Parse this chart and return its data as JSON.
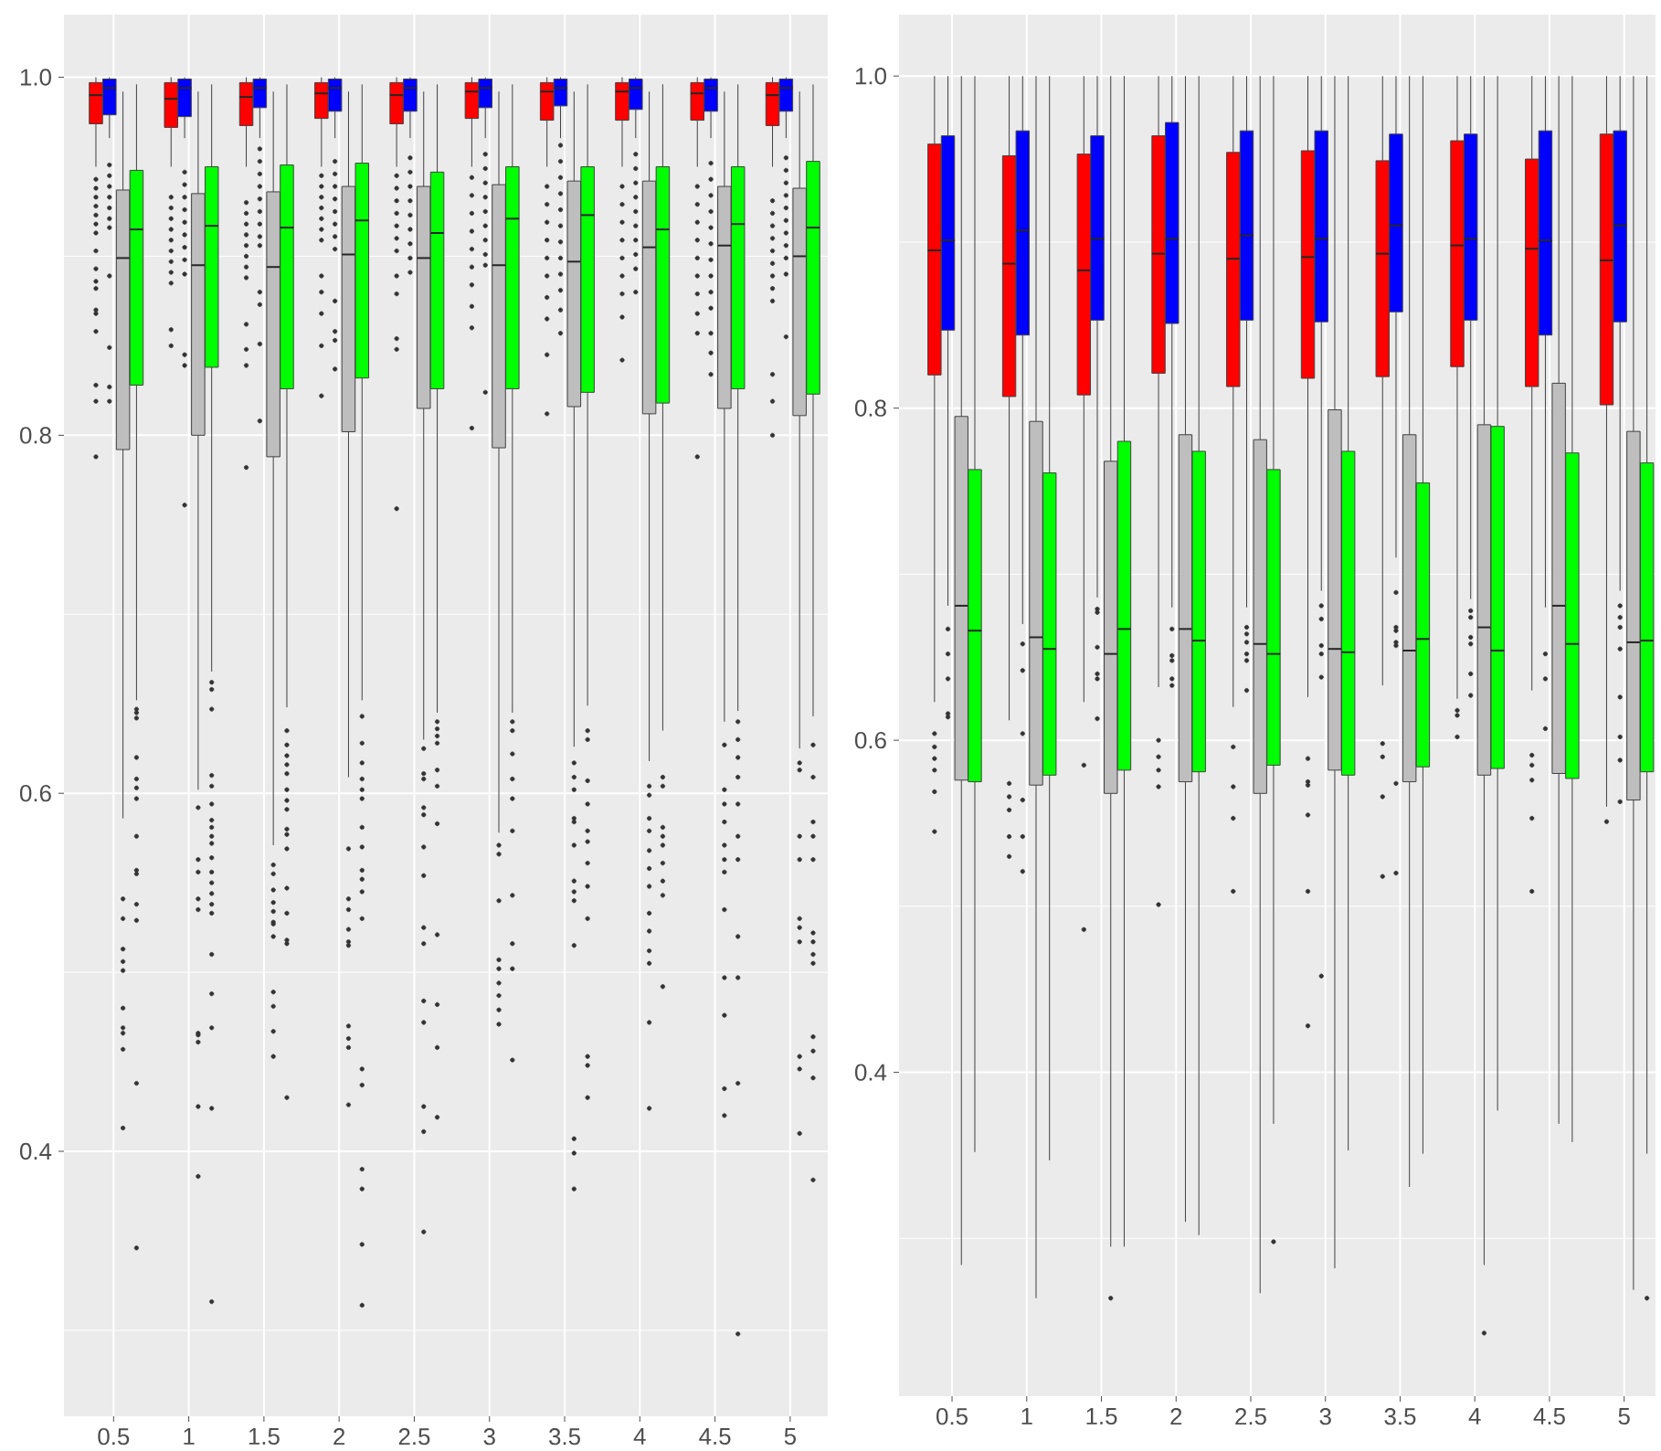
{
  "chart_data": [
    {
      "type": "box",
      "categories": [
        "0.5",
        "1",
        "1.5",
        "2",
        "2.5",
        "3",
        "3.5",
        "4",
        "4.5",
        "5"
      ],
      "series": [
        {
          "color": "#ff0000",
          "boxes": [
            {
              "low": 0.95,
              "q1": 0.974,
              "median": 0.99,
              "q3": 0.997,
              "high": 1.0,
              "outliers": [
                0.943,
                0.938,
                0.933,
                0.928,
                0.923,
                0.918,
                0.913,
                0.903,
                0.893,
                0.886,
                0.882,
                0.87,
                0.868,
                0.858,
                0.828,
                0.819,
                0.788
              ]
            },
            {
              "low": 0.95,
              "q1": 0.972,
              "median": 0.988,
              "q3": 0.997,
              "high": 1.0,
              "outliers": [
                0.933,
                0.927,
                0.921,
                0.915,
                0.909,
                0.903,
                0.897,
                0.891,
                0.885,
                0.859,
                0.85
              ]
            },
            {
              "low": 0.95,
              "q1": 0.973,
              "median": 0.989,
              "q3": 0.997,
              "high": 1.0,
              "outliers": [
                0.93,
                0.924,
                0.918,
                0.912,
                0.906,
                0.9,
                0.894,
                0.888,
                0.862,
                0.848,
                0.839,
                0.782
              ]
            },
            {
              "low": 0.95,
              "q1": 0.977,
              "median": 0.991,
              "q3": 0.997,
              "high": 1.0,
              "outliers": [
                0.945,
                0.939,
                0.933,
                0.927,
                0.921,
                0.915,
                0.909,
                0.889,
                0.88,
                0.868,
                0.85,
                0.822
              ]
            },
            {
              "low": 0.95,
              "q1": 0.974,
              "median": 0.99,
              "q3": 0.997,
              "high": 1.0,
              "outliers": [
                0.945,
                0.938,
                0.931,
                0.924,
                0.917,
                0.91,
                0.903,
                0.889,
                0.879,
                0.854,
                0.848,
                0.759
              ]
            },
            {
              "low": 0.95,
              "q1": 0.977,
              "median": 0.992,
              "q3": 0.997,
              "high": 1.0,
              "outliers": [
                0.944,
                0.934,
                0.924,
                0.914,
                0.904,
                0.894,
                0.884,
                0.872,
                0.86,
                0.804
              ]
            },
            {
              "low": 0.95,
              "q1": 0.976,
              "median": 0.992,
              "q3": 0.997,
              "high": 1.0,
              "outliers": [
                0.939,
                0.929,
                0.919,
                0.909,
                0.899,
                0.889,
                0.877,
                0.865,
                0.845,
                0.812
              ]
            },
            {
              "low": 0.95,
              "q1": 0.976,
              "median": 0.992,
              "q3": 0.997,
              "high": 1.0,
              "outliers": [
                0.939,
                0.929,
                0.919,
                0.909,
                0.899,
                0.889,
                0.879,
                0.866,
                0.842
              ]
            },
            {
              "low": 0.95,
              "q1": 0.976,
              "median": 0.991,
              "q3": 0.997,
              "high": 1.0,
              "outliers": [
                0.939,
                0.929,
                0.919,
                0.909,
                0.899,
                0.889,
                0.879,
                0.868,
                0.857,
                0.788
              ]
            },
            {
              "low": 0.95,
              "q1": 0.973,
              "median": 0.99,
              "q3": 0.997,
              "high": 1.0,
              "outliers": [
                0.931,
                0.924,
                0.917,
                0.91,
                0.903,
                0.896,
                0.889,
                0.882,
                0.875,
                0.834,
                0.819,
                0.8
              ]
            }
          ]
        },
        {
          "color": "#0000ff",
          "boxes": [
            {
              "low": 0.966,
              "q1": 0.979,
              "median": 0.994,
              "q3": 0.999,
              "high": 1.0,
              "outliers": [
                0.951,
                0.945,
                0.939,
                0.933,
                0.927,
                0.921,
                0.916,
                0.889,
                0.849,
                0.827,
                0.819
              ]
            },
            {
              "low": 0.966,
              "q1": 0.978,
              "median": 0.994,
              "q3": 0.999,
              "high": 1.0,
              "outliers": [
                0.947,
                0.94,
                0.933,
                0.926,
                0.919,
                0.912,
                0.905,
                0.898,
                0.89,
                0.845,
                0.839,
                0.761
              ]
            },
            {
              "low": 0.966,
              "q1": 0.983,
              "median": 0.994,
              "q3": 0.999,
              "high": 1.0,
              "outliers": [
                0.96,
                0.953,
                0.946,
                0.939,
                0.932,
                0.925,
                0.918,
                0.911,
                0.906,
                0.88,
                0.873,
                0.851,
                0.808
              ]
            },
            {
              "low": 0.966,
              "q1": 0.981,
              "median": 0.994,
              "q3": 0.999,
              "high": 1.0,
              "outliers": [
                0.953,
                0.946,
                0.939,
                0.932,
                0.925,
                0.918,
                0.911,
                0.904,
                0.875,
                0.858,
                0.853,
                0.837
              ]
            },
            {
              "low": 0.966,
              "q1": 0.981,
              "median": 0.994,
              "q3": 0.999,
              "high": 1.0,
              "outliers": [
                0.955,
                0.947,
                0.939,
                0.931,
                0.923,
                0.915,
                0.907,
                0.899,
                0.891
              ]
            },
            {
              "low": 0.966,
              "q1": 0.983,
              "median": 0.994,
              "q3": 0.999,
              "high": 1.0,
              "outliers": [
                0.957,
                0.949,
                0.941,
                0.933,
                0.925,
                0.917,
                0.909,
                0.901,
                0.895,
                0.824
              ]
            },
            {
              "low": 0.966,
              "q1": 0.984,
              "median": 0.994,
              "q3": 0.999,
              "high": 1.0,
              "outliers": [
                0.962,
                0.953,
                0.944,
                0.935,
                0.926,
                0.917,
                0.908,
                0.899,
                0.89,
                0.881,
                0.87,
                0.857
              ]
            },
            {
              "low": 0.966,
              "q1": 0.982,
              "median": 0.994,
              "q3": 0.999,
              "high": 1.0,
              "outliers": [
                0.957,
                0.949,
                0.941,
                0.933,
                0.925,
                0.917,
                0.909,
                0.901,
                0.893,
                0.88
              ]
            },
            {
              "low": 0.966,
              "q1": 0.981,
              "median": 0.994,
              "q3": 0.999,
              "high": 1.0,
              "outliers": [
                0.952,
                0.943,
                0.934,
                0.925,
                0.916,
                0.907,
                0.898,
                0.889,
                0.88,
                0.871,
                0.857,
                0.846,
                0.834
              ]
            },
            {
              "low": 0.966,
              "q1": 0.981,
              "median": 0.994,
              "q3": 0.999,
              "high": 1.0,
              "outliers": [
                0.955,
                0.948,
                0.941,
                0.934,
                0.927,
                0.92,
                0.913,
                0.906,
                0.899,
                0.89,
                0.855
              ]
            }
          ]
        },
        {
          "color": "#bebebe",
          "boxes": [
            {
              "low": 0.586,
              "q1": 0.792,
              "median": 0.899,
              "q3": 0.937,
              "high": 0.992,
              "outliers": [
                0.541,
                0.53,
                0.513,
                0.506,
                0.501,
                0.48,
                0.469,
                0.466,
                0.457,
                0.413
              ]
            },
            {
              "low": 0.602,
              "q1": 0.8,
              "median": 0.895,
              "q3": 0.935,
              "high": 0.992,
              "outliers": [
                0.592,
                0.563,
                0.556,
                0.541,
                0.535,
                0.466,
                0.465,
                0.461,
                0.425,
                0.386
              ]
            },
            {
              "low": 0.571,
              "q1": 0.788,
              "median": 0.894,
              "q3": 0.936,
              "high": 0.992,
              "outliers": [
                0.56,
                0.555,
                0.546,
                0.539,
                0.534,
                0.528,
                0.527,
                0.52,
                0.489,
                0.481,
                0.467,
                0.453
              ]
            },
            {
              "low": 0.609,
              "q1": 0.802,
              "median": 0.901,
              "q3": 0.939,
              "high": 0.992,
              "outliers": [
                0.569,
                0.541,
                0.535,
                0.524,
                0.517,
                0.515,
                0.47,
                0.463,
                0.458,
                0.426
              ]
            },
            {
              "low": 0.63,
              "q1": 0.815,
              "median": 0.899,
              "q3": 0.939,
              "high": 0.992,
              "outliers": [
                0.625,
                0.611,
                0.608,
                0.592,
                0.588,
                0.57,
                0.554,
                0.525,
                0.516,
                0.484,
                0.472,
                0.425,
                0.411,
                0.355
              ]
            },
            {
              "low": 0.578,
              "q1": 0.793,
              "median": 0.895,
              "q3": 0.94,
              "high": 0.992,
              "outliers": [
                0.571,
                0.566,
                0.54,
                0.507,
                0.502,
                0.494,
                0.487,
                0.479,
                0.471
              ]
            },
            {
              "low": 0.626,
              "q1": 0.816,
              "median": 0.897,
              "q3": 0.942,
              "high": 0.992,
              "outliers": [
                0.617,
                0.609,
                0.602,
                0.586,
                0.584,
                0.571,
                0.551,
                0.545,
                0.54,
                0.515,
                0.407,
                0.399,
                0.379
              ]
            },
            {
              "low": 0.618,
              "q1": 0.812,
              "median": 0.905,
              "q3": 0.942,
              "high": 0.992,
              "outliers": [
                0.604,
                0.599,
                0.586,
                0.579,
                0.568,
                0.558,
                0.548,
                0.533,
                0.523,
                0.512,
                0.505,
                0.472,
                0.424
              ]
            },
            {
              "low": 0.64,
              "q1": 0.815,
              "median": 0.906,
              "q3": 0.939,
              "high": 0.992,
              "outliers": [
                0.627,
                0.602,
                0.594,
                0.584,
                0.571,
                0.563,
                0.556,
                0.535,
                0.497,
                0.476,
                0.435,
                0.42
              ]
            },
            {
              "low": 0.625,
              "q1": 0.811,
              "median": 0.9,
              "q3": 0.938,
              "high": 0.992,
              "outliers": [
                0.617,
                0.613,
                0.576,
                0.563,
                0.53,
                0.525,
                0.517,
                0.453,
                0.446,
                0.41
              ]
            }
          ]
        },
        {
          "color": "#00ff00",
          "boxes": [
            {
              "low": 0.652,
              "q1": 0.828,
              "median": 0.915,
              "q3": 0.948,
              "high": 0.996,
              "outliers": [
                0.647,
                0.645,
                0.642,
                0.62,
                0.608,
                0.603,
                0.597,
                0.576,
                0.557,
                0.555,
                0.538,
                0.529,
                0.438,
                0.346
              ]
            },
            {
              "low": 0.668,
              "q1": 0.838,
              "median": 0.917,
              "q3": 0.95,
              "high": 0.996,
              "outliers": [
                0.662,
                0.658,
                0.647,
                0.61,
                0.604,
                0.594,
                0.585,
                0.581,
                0.576,
                0.572,
                0.564,
                0.556,
                0.55,
                0.544,
                0.538,
                0.533,
                0.51,
                0.488,
                0.469,
                0.424,
                0.316
              ]
            },
            {
              "low": 0.648,
              "q1": 0.826,
              "median": 0.916,
              "q3": 0.951,
              "high": 0.996,
              "outliers": [
                0.635,
                0.627,
                0.621,
                0.616,
                0.611,
                0.602,
                0.596,
                0.591,
                0.58,
                0.577,
                0.569,
                0.547,
                0.533,
                0.518,
                0.516,
                0.43
              ]
            },
            {
              "low": 0.652,
              "q1": 0.832,
              "median": 0.92,
              "q3": 0.952,
              "high": 0.996,
              "outliers": [
                0.643,
                0.628,
                0.617,
                0.608,
                0.602,
                0.597,
                0.581,
                0.57,
                0.557,
                0.552,
                0.545,
                0.53,
                0.446,
                0.437,
                0.39,
                0.379,
                0.348,
                0.314
              ]
            },
            {
              "low": 0.645,
              "q1": 0.826,
              "median": 0.913,
              "q3": 0.947,
              "high": 0.996,
              "outliers": [
                0.64,
                0.636,
                0.632,
                0.628,
                0.613,
                0.604,
                0.583,
                0.521,
                0.482,
                0.458,
                0.419
              ]
            },
            {
              "low": 0.645,
              "q1": 0.826,
              "median": 0.921,
              "q3": 0.95,
              "high": 0.996,
              "outliers": [
                0.64,
                0.635,
                0.622,
                0.608,
                0.597,
                0.579,
                0.543,
                0.516,
                0.502,
                0.451
              ]
            },
            {
              "low": 0.649,
              "q1": 0.824,
              "median": 0.923,
              "q3": 0.95,
              "high": 0.996,
              "outliers": [
                0.635,
                0.63,
                0.607,
                0.594,
                0.579,
                0.573,
                0.561,
                0.548,
                0.53,
                0.453,
                0.448,
                0.43
              ]
            },
            {
              "low": 0.635,
              "q1": 0.818,
              "median": 0.915,
              "q3": 0.95,
              "high": 0.996,
              "outliers": [
                0.609,
                0.604,
                0.581,
                0.576,
                0.571,
                0.561,
                0.551,
                0.543,
                0.492
              ]
            },
            {
              "low": 0.646,
              "q1": 0.826,
              "median": 0.918,
              "q3": 0.95,
              "high": 0.996,
              "outliers": [
                0.64,
                0.63,
                0.62,
                0.609,
                0.594,
                0.576,
                0.563,
                0.52,
                0.497,
                0.438,
                0.298
              ]
            },
            {
              "low": 0.643,
              "q1": 0.823,
              "median": 0.916,
              "q3": 0.953,
              "high": 0.996,
              "outliers": [
                0.627,
                0.609,
                0.584,
                0.576,
                0.563,
                0.522,
                0.517,
                0.51,
                0.505,
                0.464,
                0.456,
                0.441,
                0.384
              ]
            }
          ]
        }
      ],
      "ylim": [
        0.252,
        1.035
      ],
      "yticks": [
        {
          "value": 0.4,
          "label": "0.4"
        },
        {
          "value": 0.6,
          "label": "0.6"
        },
        {
          "value": 0.8,
          "label": "0.8"
        },
        {
          "value": 1.0,
          "label": "1.0"
        }
      ],
      "grid": true
    },
    {
      "type": "box",
      "categories": [
        "0.5",
        "1",
        "1.5",
        "2",
        "2.5",
        "3",
        "3.5",
        "4",
        "4.5",
        "5"
      ],
      "series": [
        {
          "color": "#ff0000",
          "boxes": [
            {
              "low": 0.623,
              "q1": 0.82,
              "median": 0.895,
              "q3": 0.959,
              "high": 1.0,
              "outliers": [
                0.604,
                0.596,
                0.589,
                0.582,
                0.569,
                0.545
              ]
            },
            {
              "low": 0.612,
              "q1": 0.807,
              "median": 0.887,
              "q3": 0.952,
              "high": 1.0,
              "outliers": [
                0.574,
                0.566,
                0.558,
                0.542,
                0.53
              ]
            },
            {
              "low": 0.623,
              "q1": 0.808,
              "median": 0.883,
              "q3": 0.953,
              "high": 1.0,
              "outliers": [
                0.585,
                0.486
              ]
            },
            {
              "low": 0.632,
              "q1": 0.821,
              "median": 0.893,
              "q3": 0.964,
              "high": 1.0,
              "outliers": [
                0.6,
                0.59,
                0.582,
                0.572,
                0.501
              ]
            },
            {
              "low": 0.62,
              "q1": 0.813,
              "median": 0.89,
              "q3": 0.954,
              "high": 1.0,
              "outliers": [
                0.596,
                0.572,
                0.553,
                0.509
              ]
            },
            {
              "low": 0.626,
              "q1": 0.818,
              "median": 0.891,
              "q3": 0.955,
              "high": 1.0,
              "outliers": [
                0.589,
                0.575,
                0.573,
                0.555,
                0.509,
                0.428
              ]
            },
            {
              "low": 0.633,
              "q1": 0.819,
              "median": 0.893,
              "q3": 0.949,
              "high": 1.0,
              "outliers": [
                0.598,
                0.59,
                0.566,
                0.518
              ]
            },
            {
              "low": 0.625,
              "q1": 0.825,
              "median": 0.898,
              "q3": 0.961,
              "high": 1.0,
              "outliers": [
                0.618,
                0.615,
                0.602
              ]
            },
            {
              "low": 0.63,
              "q1": 0.813,
              "median": 0.896,
              "q3": 0.95,
              "high": 1.0,
              "outliers": [
                0.591,
                0.585,
                0.576,
                0.553,
                0.509
              ]
            },
            {
              "low": 0.56,
              "q1": 0.802,
              "median": 0.889,
              "q3": 0.965,
              "high": 1.0,
              "outliers": [
                0.551
              ]
            }
          ]
        },
        {
          "color": "#0000ff",
          "boxes": [
            {
              "low": 0.681,
              "q1": 0.847,
              "median": 0.901,
              "q3": 0.964,
              "high": 1.0,
              "outliers": [
                0.667,
                0.652,
                0.637,
                0.616,
                0.614
              ]
            },
            {
              "low": 0.67,
              "q1": 0.844,
              "median": 0.907,
              "q3": 0.967,
              "high": 1.0,
              "outliers": [
                0.658,
                0.642,
                0.604,
                0.564,
                0.542,
                0.521
              ]
            },
            {
              "low": 0.686,
              "q1": 0.853,
              "median": 0.902,
              "q3": 0.964,
              "high": 1.0,
              "outliers": [
                0.679,
                0.677,
                0.656,
                0.64,
                0.637,
                0.613
              ]
            },
            {
              "low": 0.68,
              "q1": 0.851,
              "median": 0.902,
              "q3": 0.972,
              "high": 1.0,
              "outliers": [
                0.667,
                0.651,
                0.648,
                0.637,
                0.633
              ]
            },
            {
              "low": 0.68,
              "q1": 0.853,
              "median": 0.904,
              "q3": 0.967,
              "high": 1.0,
              "outliers": [
                0.668,
                0.664,
                0.659,
                0.652,
                0.648,
                0.63
              ]
            },
            {
              "low": 0.69,
              "q1": 0.852,
              "median": 0.902,
              "q3": 0.967,
              "high": 1.0,
              "outliers": [
                0.681,
                0.673,
                0.657,
                0.652,
                0.638,
                0.458
              ]
            },
            {
              "low": 0.71,
              "q1": 0.858,
              "median": 0.91,
              "q3": 0.965,
              "high": 1.0,
              "outliers": [
                0.689,
                0.668,
                0.666,
                0.659,
                0.657,
                0.574,
                0.52
              ]
            },
            {
              "low": 0.685,
              "q1": 0.853,
              "median": 0.902,
              "q3": 0.965,
              "high": 1.0,
              "outliers": [
                0.678,
                0.674,
                0.662,
                0.658,
                0.64,
                0.627
              ]
            },
            {
              "low": 0.68,
              "q1": 0.844,
              "median": 0.901,
              "q3": 0.967,
              "high": 1.0,
              "outliers": [
                0.652,
                0.637,
                0.607
              ]
            },
            {
              "low": 0.69,
              "q1": 0.852,
              "median": 0.91,
              "q3": 0.967,
              "high": 1.0,
              "outliers": [
                0.681,
                0.674,
                0.668,
                0.655,
                0.626,
                0.602,
                0.588,
                0.563
              ]
            }
          ]
        },
        {
          "color": "#bebebe",
          "boxes": [
            {
              "low": 0.284,
              "q1": 0.576,
              "median": 0.681,
              "q3": 0.795,
              "high": 1.0
            },
            {
              "low": 0.264,
              "q1": 0.573,
              "median": 0.662,
              "q3": 0.792,
              "high": 1.0
            },
            {
              "low": 0.295,
              "q1": 0.568,
              "median": 0.652,
              "q3": 0.768,
              "high": 1.0,
              "outliers": [
                0.264
              ]
            },
            {
              "low": 0.31,
              "q1": 0.575,
              "median": 0.667,
              "q3": 0.784,
              "high": 1.0
            },
            {
              "low": 0.267,
              "q1": 0.568,
              "median": 0.658,
              "q3": 0.781,
              "high": 1.0
            },
            {
              "low": 0.282,
              "q1": 0.582,
              "median": 0.655,
              "q3": 0.799,
              "high": 1.0
            },
            {
              "low": 0.331,
              "q1": 0.575,
              "median": 0.654,
              "q3": 0.784,
              "high": 1.0
            },
            {
              "low": 0.284,
              "q1": 0.579,
              "median": 0.668,
              "q3": 0.79,
              "high": 1.0,
              "outliers": [
                0.243
              ]
            },
            {
              "low": 0.369,
              "q1": 0.58,
              "median": 0.681,
              "q3": 0.815,
              "high": 1.0
            },
            {
              "low": 0.269,
              "q1": 0.564,
              "median": 0.659,
              "q3": 0.786,
              "high": 1.0
            }
          ]
        },
        {
          "color": "#00ff00",
          "boxes": [
            {
              "low": 0.352,
              "q1": 0.575,
              "median": 0.666,
              "q3": 0.763,
              "high": 1.0
            },
            {
              "low": 0.347,
              "q1": 0.579,
              "median": 0.655,
              "q3": 0.761,
              "high": 1.0
            },
            {
              "low": 0.295,
              "q1": 0.582,
              "median": 0.667,
              "q3": 0.78,
              "high": 1.0
            },
            {
              "low": 0.302,
              "q1": 0.581,
              "median": 0.66,
              "q3": 0.774,
              "high": 1.0
            },
            {
              "low": 0.369,
              "q1": 0.585,
              "median": 0.652,
              "q3": 0.763,
              "high": 1.0,
              "outliers": [
                0.298
              ]
            },
            {
              "low": 0.353,
              "q1": 0.579,
              "median": 0.653,
              "q3": 0.774,
              "high": 1.0
            },
            {
              "low": 0.351,
              "q1": 0.584,
              "median": 0.661,
              "q3": 0.755,
              "high": 1.0
            },
            {
              "low": 0.377,
              "q1": 0.583,
              "median": 0.654,
              "q3": 0.789,
              "high": 1.0
            },
            {
              "low": 0.358,
              "q1": 0.577,
              "median": 0.658,
              "q3": 0.773,
              "high": 1.0
            },
            {
              "low": 0.351,
              "q1": 0.581,
              "median": 0.66,
              "q3": 0.767,
              "high": 1.0,
              "outliers": [
                0.264
              ]
            }
          ]
        }
      ],
      "ylim": [
        0.205,
        1.037
      ],
      "yticks": [
        {
          "value": 0.4,
          "label": "0.4"
        },
        {
          "value": 0.6,
          "label": "0.6"
        },
        {
          "value": 0.8,
          "label": "0.8"
        },
        {
          "value": 1.0,
          "label": "1.0"
        }
      ],
      "grid": true
    }
  ]
}
